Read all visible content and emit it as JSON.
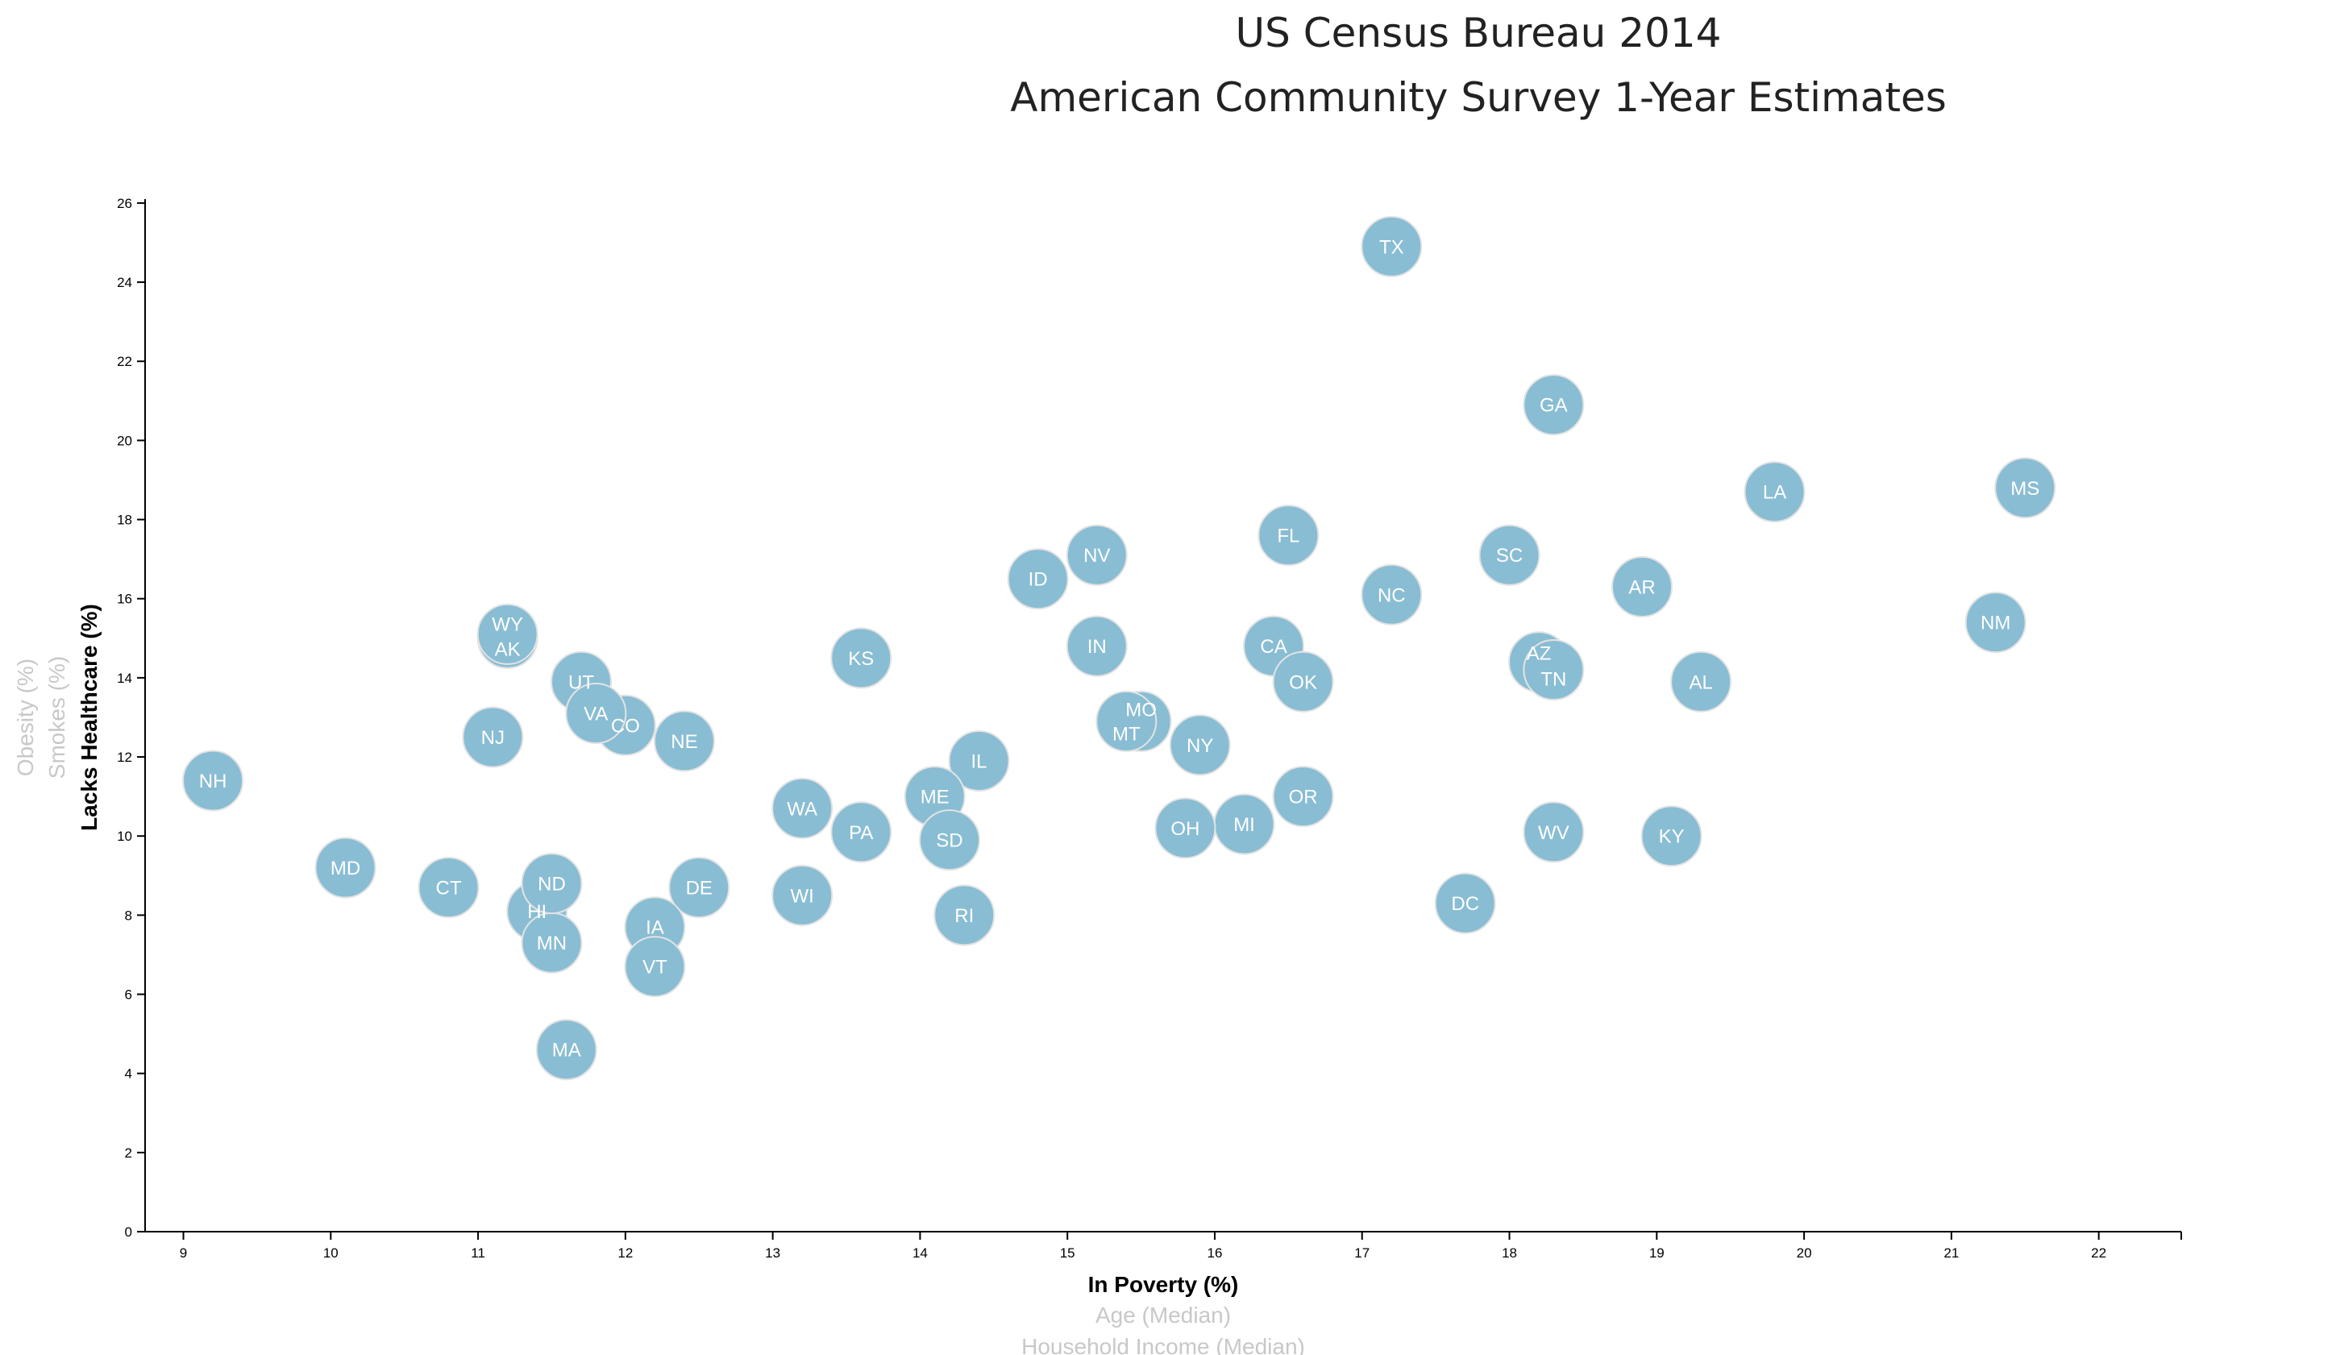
{
  "chart_data": {
    "type": "scatter",
    "title": [
      "US Census Bureau 2014",
      "American Community Survey 1-Year Estimates"
    ],
    "xlabel": "In Poverty (%)",
    "ylabel": "Lacks Healthcare (%)",
    "x_alt_labels": [
      "Age (Median)",
      "Household Income (Median)"
    ],
    "y_alt_labels": [
      "Smokes (%)",
      "Obesity (%)"
    ],
    "xlim": [
      8.74,
      22.56
    ],
    "ylim": [
      0,
      26.1
    ],
    "xticks": [
      9,
      10,
      11,
      12,
      13,
      14,
      15,
      16,
      17,
      18,
      19,
      20,
      21,
      22
    ],
    "yticks": [
      0,
      2,
      4,
      6,
      8,
      10,
      12,
      14,
      16,
      18,
      20,
      22,
      24,
      26
    ],
    "grid": false,
    "marker_color": "#89bdd3",
    "marker_stroke": "#e3e3e3",
    "points": [
      {
        "label": "AL",
        "x": 19.3,
        "y": 13.9
      },
      {
        "label": "AK",
        "x": 11.2,
        "y": 15.0
      },
      {
        "label": "AZ",
        "x": 18.2,
        "y": 14.4
      },
      {
        "label": "AR",
        "x": 18.9,
        "y": 16.3
      },
      {
        "label": "CA",
        "x": 16.4,
        "y": 14.8
      },
      {
        "label": "CO",
        "x": 12.0,
        "y": 12.8
      },
      {
        "label": "CT",
        "x": 10.8,
        "y": 8.7
      },
      {
        "label": "DE",
        "x": 12.5,
        "y": 8.7
      },
      {
        "label": "DC",
        "x": 17.7,
        "y": 8.3
      },
      {
        "label": "FL",
        "x": 16.5,
        "y": 17.6
      },
      {
        "label": "GA",
        "x": 18.3,
        "y": 20.9
      },
      {
        "label": "HI",
        "x": 11.4,
        "y": 8.1
      },
      {
        "label": "ID",
        "x": 14.8,
        "y": 16.5
      },
      {
        "label": "IL",
        "x": 14.4,
        "y": 11.9
      },
      {
        "label": "IN",
        "x": 15.2,
        "y": 14.8
      },
      {
        "label": "IA",
        "x": 12.2,
        "y": 7.7
      },
      {
        "label": "KS",
        "x": 13.6,
        "y": 14.5
      },
      {
        "label": "KY",
        "x": 19.1,
        "y": 10.0
      },
      {
        "label": "LA",
        "x": 19.8,
        "y": 18.7
      },
      {
        "label": "ME",
        "x": 14.1,
        "y": 11.0
      },
      {
        "label": "MD",
        "x": 10.1,
        "y": 9.2
      },
      {
        "label": "MA",
        "x": 11.6,
        "y": 4.6
      },
      {
        "label": "MI",
        "x": 16.2,
        "y": 10.3
      },
      {
        "label": "MN",
        "x": 11.5,
        "y": 7.3
      },
      {
        "label": "MS",
        "x": 21.5,
        "y": 18.8
      },
      {
        "label": "MO",
        "x": 15.5,
        "y": 12.9
      },
      {
        "label": "MT",
        "x": 15.4,
        "y": 12.9
      },
      {
        "label": "NE",
        "x": 12.4,
        "y": 12.4
      },
      {
        "label": "NV",
        "x": 15.2,
        "y": 17.1
      },
      {
        "label": "NH",
        "x": 9.2,
        "y": 11.4
      },
      {
        "label": "NJ",
        "x": 11.1,
        "y": 12.5
      },
      {
        "label": "NM",
        "x": 21.3,
        "y": 15.4
      },
      {
        "label": "NY",
        "x": 15.9,
        "y": 12.3
      },
      {
        "label": "NC",
        "x": 17.2,
        "y": 16.1
      },
      {
        "label": "ND",
        "x": 11.5,
        "y": 8.8
      },
      {
        "label": "OH",
        "x": 15.8,
        "y": 10.2
      },
      {
        "label": "OK",
        "x": 16.6,
        "y": 13.9
      },
      {
        "label": "OR",
        "x": 16.6,
        "y": 11.0
      },
      {
        "label": "PA",
        "x": 13.6,
        "y": 10.1
      },
      {
        "label": "RI",
        "x": 14.3,
        "y": 8.0
      },
      {
        "label": "SC",
        "x": 18.0,
        "y": 17.1
      },
      {
        "label": "SD",
        "x": 14.2,
        "y": 9.9
      },
      {
        "label": "TN",
        "x": 18.3,
        "y": 14.2
      },
      {
        "label": "TX",
        "x": 17.2,
        "y": 24.9
      },
      {
        "label": "UT",
        "x": 11.7,
        "y": 13.9
      },
      {
        "label": "VT",
        "x": 12.2,
        "y": 6.7
      },
      {
        "label": "VA",
        "x": 11.8,
        "y": 13.1
      },
      {
        "label": "WA",
        "x": 13.2,
        "y": 10.7
      },
      {
        "label": "WV",
        "x": 18.3,
        "y": 10.1
      },
      {
        "label": "WI",
        "x": 13.2,
        "y": 8.5
      },
      {
        "label": "WY",
        "x": 11.2,
        "y": 15.1
      }
    ]
  }
}
